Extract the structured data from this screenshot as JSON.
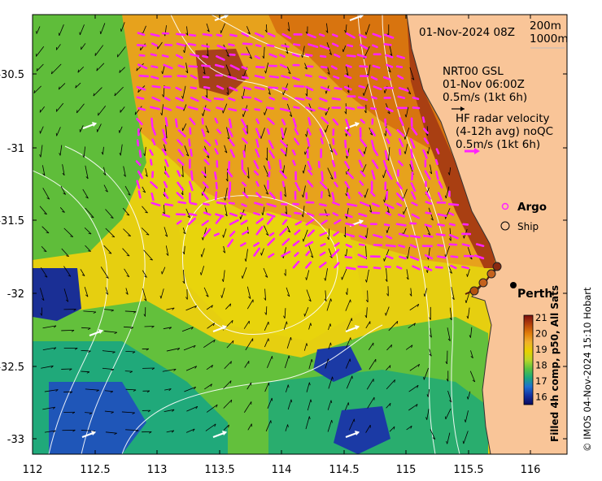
{
  "header": {
    "datetime": "01-Nov-2024 08Z",
    "depth_200": "200m",
    "depth_1000": "1000m"
  },
  "legend": {
    "gsl_title": "NRT00 GSL",
    "gsl_time": "01-Nov 06:00Z",
    "gsl_scale": "0.5m/s (1kt 6h)",
    "hf_title": "HF radar velocity",
    "hf_sub": "(4-12h avg) noQC",
    "hf_scale": "0.5m/s (1kt 6h)",
    "argo": "Argo",
    "ship": "Ship"
  },
  "places": {
    "perth": "Perth"
  },
  "axes": {
    "x_ticks": [
      "112",
      "112.5",
      "113",
      "113.5",
      "114",
      "114.5",
      "115",
      "115.5",
      "116"
    ],
    "y_ticks": [
      "-30.5",
      "-31",
      "-31.5",
      "-32",
      "-32.5",
      "-33"
    ]
  },
  "colorbar": {
    "title": "Filled 4h comp, p50, All Sats",
    "ticks": [
      "21",
      "20",
      "19",
      "18",
      "17",
      "16"
    ],
    "colors": [
      "#7a0f0f",
      "#b5400b",
      "#e07b0a",
      "#f0b02a",
      "#e8d000",
      "#b9d628",
      "#58c23f",
      "#19a87e",
      "#1e6fd0",
      "#1330a0",
      "#0a0a5e"
    ]
  },
  "credit": "© IMOS 04-Nov-2024 15:10 Hobart",
  "palette": {
    "land": "#f9c598",
    "hf_arrow": "#ff22ff",
    "argo": "#ff22ff",
    "current_arrow": "#000000",
    "contour": "#ffffff"
  }
}
